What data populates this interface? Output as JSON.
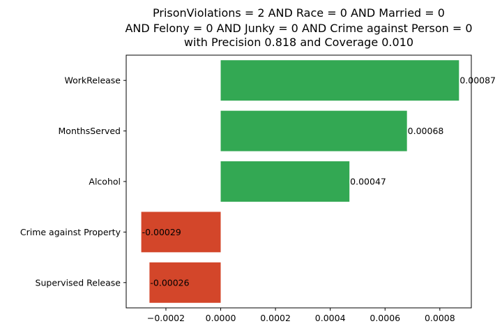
{
  "chart_data": {
    "type": "bar",
    "orientation": "horizontal",
    "title_lines": [
      "PrisonViolations = 2 AND Race = 0 AND Married = 0",
      "AND Felony = 0 AND Junky = 0 AND Crime against Person = 0",
      "with Precision 0.818 and Coverage 0.010"
    ],
    "categories": [
      "WorkRelease",
      "MonthsServed",
      "Alcohol",
      "Crime against Property",
      "Supervised Release"
    ],
    "values": [
      0.00087,
      0.00068,
      0.00047,
      -0.00029,
      -0.00026
    ],
    "value_labels": [
      "0.00087",
      "0.00068",
      "0.00047",
      "-0.00029",
      "-0.00026"
    ],
    "xlim": [
      -0.000345,
      0.000915
    ],
    "xticks": [
      -0.0002,
      0.0,
      0.0002,
      0.0004,
      0.0006,
      0.0008
    ],
    "xtick_labels": [
      "−0.0002",
      "0.0000",
      "0.0002",
      "0.0004",
      "0.0006",
      "0.0008"
    ],
    "xlabel": "",
    "ylabel": "",
    "grid": false,
    "legend": false,
    "colors": {
      "positive": "#33a853",
      "negative": "#d3462a",
      "axis": "#000000"
    }
  }
}
